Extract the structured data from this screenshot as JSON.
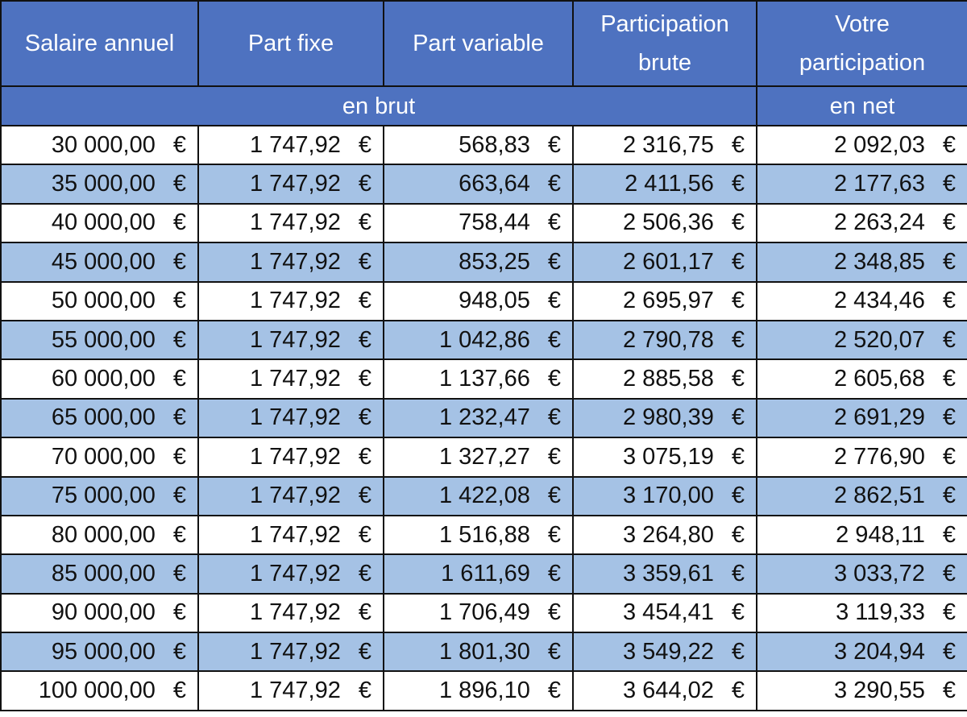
{
  "headers": [
    "Salaire annuel",
    "Part fixe",
    "Part variable",
    "Participation brute",
    "Votre participation"
  ],
  "subheaders": {
    "gross": "en brut",
    "net": "en net"
  },
  "currency_symbol": "€",
  "colors": {
    "header": "#4e72c0",
    "alt_row": "#a5c2e5",
    "row": "#ffffff"
  },
  "rows": [
    [
      "30 000,00",
      "1 747,92",
      "568,83",
      "2 316,75",
      "2 092,03"
    ],
    [
      "35 000,00",
      "1 747,92",
      "663,64",
      "2 411,56",
      "2 177,63"
    ],
    [
      "40 000,00",
      "1 747,92",
      "758,44",
      "2 506,36",
      "2 263,24"
    ],
    [
      "45 000,00",
      "1 747,92",
      "853,25",
      "2 601,17",
      "2 348,85"
    ],
    [
      "50 000,00",
      "1 747,92",
      "948,05",
      "2 695,97",
      "2 434,46"
    ],
    [
      "55 000,00",
      "1 747,92",
      "1 042,86",
      "2 790,78",
      "2 520,07"
    ],
    [
      "60 000,00",
      "1 747,92",
      "1 137,66",
      "2 885,58",
      "2 605,68"
    ],
    [
      "65 000,00",
      "1 747,92",
      "1 232,47",
      "2 980,39",
      "2 691,29"
    ],
    [
      "70 000,00",
      "1 747,92",
      "1 327,27",
      "3 075,19",
      "2 776,90"
    ],
    [
      "75 000,00",
      "1 747,92",
      "1 422,08",
      "3 170,00",
      "2 862,51"
    ],
    [
      "80 000,00",
      "1 747,92",
      "1 516,88",
      "3 264,80",
      "2 948,11"
    ],
    [
      "85 000,00",
      "1 747,92",
      "1 611,69",
      "3 359,61",
      "3 033,72"
    ],
    [
      "90 000,00",
      "1 747,92",
      "1 706,49",
      "3 454,41",
      "3 119,33"
    ],
    [
      "95 000,00",
      "1 747,92",
      "1 801,30",
      "3 549,22",
      "3 204,94"
    ],
    [
      "100 000,00",
      "1 747,92",
      "1 896,10",
      "3 644,02",
      "3 290,55"
    ]
  ]
}
